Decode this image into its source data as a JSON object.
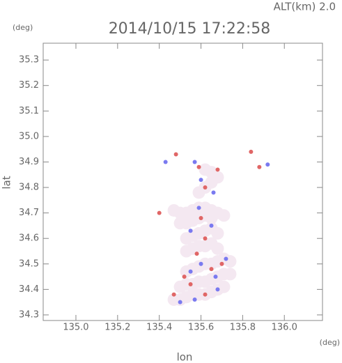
{
  "chart_data": {
    "type": "scatter",
    "title": "2014/10/15 17:22:58",
    "subtitle": "ALT(km) 2.0",
    "x_label": "lon",
    "y_label": "lat",
    "x_unit": "(deg)",
    "y_unit": "(deg)",
    "xlim": [
      134.843,
      136.183
    ],
    "ylim": [
      34.278,
      35.366
    ],
    "xticks": [
      {
        "value": 135,
        "label": "135.0"
      },
      135.2,
      135.4,
      135.6,
      135.8,
      {
        "value": 136,
        "label": "136.0"
      }
    ],
    "yticks": [
      34.3,
      34.4,
      34.5,
      34.6,
      34.7,
      34.8,
      34.9,
      {
        "value": 35,
        "label": "35.0"
      },
      35.1,
      35.2,
      35.3
    ],
    "series": [
      {
        "color": "#f4e8f1",
        "marker_size": 9,
        "x": [
          135.47,
          135.5,
          135.53,
          135.56,
          135.59,
          135.62,
          135.65,
          135.68,
          135.71,
          135.5,
          135.53,
          135.56,
          135.59,
          135.62,
          135.65,
          135.68,
          135.71,
          135.74,
          135.53,
          135.56,
          135.59,
          135.62,
          135.65,
          135.68,
          135.71,
          135.74,
          135.53,
          135.56,
          135.59,
          135.62,
          135.65,
          135.68,
          135.53,
          135.56,
          135.59,
          135.62,
          135.65,
          135.68,
          135.5,
          135.53,
          135.56,
          135.59,
          135.62,
          135.65,
          135.47,
          135.5,
          135.53,
          135.56,
          135.59,
          135.62,
          135.65,
          135.68,
          135.71,
          135.59,
          135.62,
          135.65,
          135.68,
          135.62,
          135.65
        ],
        "y": [
          34.36,
          34.36,
          34.37,
          34.38,
          34.38,
          34.38,
          34.39,
          34.4,
          34.41,
          34.41,
          34.42,
          34.42,
          34.43,
          34.43,
          34.44,
          34.45,
          34.46,
          34.46,
          34.47,
          34.48,
          34.49,
          34.5,
          34.5,
          34.51,
          34.52,
          34.51,
          34.55,
          34.56,
          34.57,
          34.57,
          34.58,
          34.56,
          34.6,
          34.61,
          34.62,
          34.63,
          34.64,
          34.62,
          34.66,
          34.66,
          34.67,
          34.68,
          34.69,
          34.68,
          34.71,
          34.7,
          34.7,
          34.71,
          34.72,
          34.72,
          34.71,
          34.7,
          34.69,
          34.78,
          34.8,
          34.82,
          34.84,
          34.87,
          34.86
        ]
      },
      {
        "color": "#e06666",
        "marker_size": 3,
        "x": [
          135.48,
          135.59,
          135.68,
          135.62,
          135.84,
          135.6,
          135.62,
          135.58,
          135.65,
          135.52,
          135.7,
          135.47,
          135.62,
          135.55,
          135.88,
          135.4
        ],
        "y": [
          34.93,
          34.88,
          34.87,
          34.8,
          34.94,
          34.68,
          34.6,
          34.54,
          34.48,
          34.45,
          34.5,
          34.38,
          34.38,
          34.42,
          34.88,
          34.7
        ]
      },
      {
        "color": "#7a7af0",
        "marker_size": 3,
        "x": [
          135.43,
          135.57,
          135.6,
          135.66,
          135.59,
          135.55,
          135.65,
          135.6,
          135.67,
          135.55,
          135.57,
          135.68,
          135.92,
          135.5,
          135.72
        ],
        "y": [
          34.9,
          34.9,
          34.83,
          34.78,
          34.72,
          34.63,
          34.65,
          34.5,
          34.45,
          34.47,
          34.36,
          34.4,
          34.89,
          34.35,
          34.52
        ]
      }
    ]
  }
}
